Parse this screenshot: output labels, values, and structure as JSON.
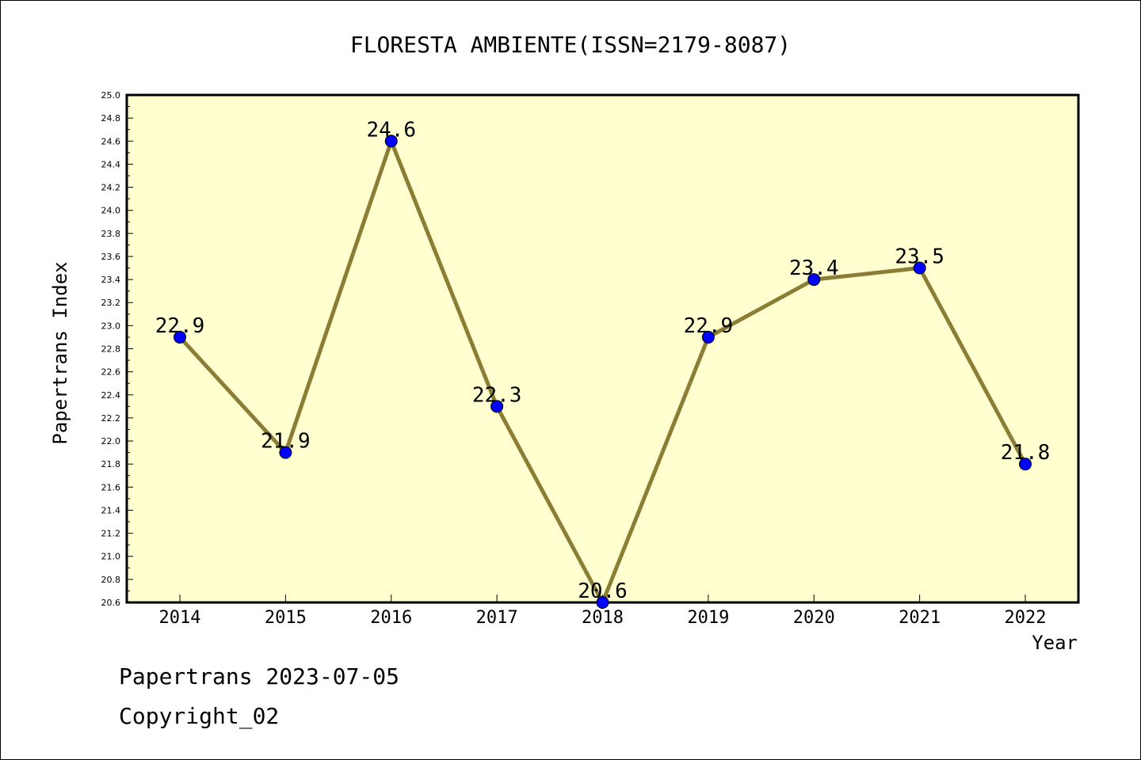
{
  "chart_data": {
    "type": "line",
    "title": "FLORESTA AMBIENTE(ISSN=2179-8087)",
    "xlabel": "Year",
    "ylabel": "Papertrans Index",
    "categories": [
      "2014",
      "2015",
      "2016",
      "2017",
      "2018",
      "2019",
      "2020",
      "2021",
      "2022"
    ],
    "values": [
      22.9,
      21.9,
      24.6,
      22.3,
      20.6,
      22.9,
      23.4,
      23.5,
      21.8
    ],
    "value_labels": [
      "22.9",
      "21.9",
      "24.6",
      "22.3",
      "20.6",
      "22.9",
      "23.4",
      "23.5",
      "21.8"
    ],
    "ylim": [
      20.6,
      25.0
    ],
    "yticks": [
      "20.6",
      "20.8",
      "21.0",
      "21.2",
      "21.4",
      "21.6",
      "21.8",
      "22.0",
      "22.2",
      "22.4",
      "22.6",
      "22.8",
      "23.0",
      "23.2",
      "23.4",
      "23.6",
      "23.8",
      "24.0",
      "24.2",
      "24.4",
      "24.6",
      "24.8",
      "25.0"
    ],
    "grid": false,
    "colors": {
      "plot_background": "#ffffd0",
      "line": "#8b7d35",
      "marker": "#0000ff"
    }
  },
  "footer": {
    "line1": "Papertrans 2023-07-05",
    "line2": "Copyright_02"
  }
}
